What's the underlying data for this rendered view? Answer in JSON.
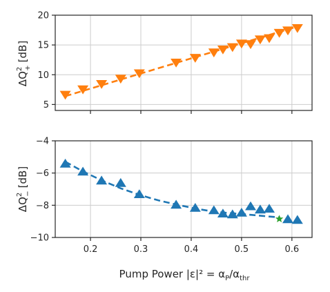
{
  "chart_data": [
    {
      "type": "line",
      "ylabel": "ΔQ",
      "ylabel_sup": "2",
      "ylabel_sub": "+",
      "ylabel_unit": "[dB]",
      "xlim": [
        0.13,
        0.64
      ],
      "ylim": [
        4,
        20
      ],
      "grid": true,
      "x_ticks": [
        0.2,
        0.3,
        0.4,
        0.5,
        0.6
      ],
      "y_ticks": [
        5,
        10,
        15,
        20
      ],
      "y_tick_labels": [
        "5",
        "10",
        "15",
        "20"
      ],
      "marker_color": "#ff7f0e",
      "line_color": "#ff7f0e",
      "series": [
        {
          "marker": "triangle-down",
          "x": [
            0.15,
            0.185,
            0.222,
            0.26,
            0.297,
            0.37,
            0.408,
            0.445,
            0.463,
            0.482,
            0.5,
            0.518,
            0.537,
            0.555,
            0.575,
            0.592,
            0.611
          ],
          "y": [
            6.6,
            7.5,
            8.4,
            9.3,
            10.2,
            12.0,
            12.8,
            13.7,
            14.2,
            14.6,
            15.2,
            15.1,
            15.9,
            16.1,
            17.0,
            17.4,
            17.8
          ]
        }
      ],
      "fit": {
        "style": "dashed",
        "x": [
          0.15,
          0.611
        ],
        "y": [
          6.4,
          18.1
        ]
      }
    },
    {
      "type": "line",
      "ylabel": "ΔQ",
      "ylabel_sup": "2",
      "ylabel_sub": "−",
      "ylabel_unit": "[dB]",
      "xlabel": "Pump Power |ε|² = α",
      "xlabel_sub1": "P",
      "xlabel_mid": "/α",
      "xlabel_sub2": "thr",
      "xlim": [
        0.13,
        0.64
      ],
      "ylim": [
        -10,
        -4
      ],
      "grid": true,
      "x_ticks": [
        0.2,
        0.3,
        0.4,
        0.5,
        0.6
      ],
      "x_tick_labels": [
        "0.2",
        "0.3",
        "0.4",
        "0.5",
        "0.6"
      ],
      "y_ticks": [
        -10,
        -8,
        -6,
        -4
      ],
      "y_tick_labels": [
        "−10",
        "−8",
        "−6",
        "−4"
      ],
      "marker_color": "#1f77b4",
      "line_color": "#1f77b4",
      "series": [
        {
          "marker": "triangle-up",
          "x": [
            0.15,
            0.185,
            0.222,
            0.26,
            0.297,
            0.37,
            0.408,
            0.445,
            0.463,
            0.482,
            0.5,
            0.518,
            0.537,
            0.555,
            0.592,
            0.611
          ],
          "y": [
            -5.4,
            -5.9,
            -6.45,
            -6.6,
            -7.3,
            -7.95,
            -8.15,
            -8.3,
            -8.5,
            -8.55,
            -8.45,
            -8.05,
            -8.25,
            -8.2,
            -8.85,
            -8.9
          ]
        }
      ],
      "fit": {
        "style": "dashed",
        "x": [
          0.15,
          0.185,
          0.222,
          0.26,
          0.297,
          0.335,
          0.37,
          0.408,
          0.445,
          0.482,
          0.52,
          0.555,
          0.575
        ],
        "y": [
          -5.3,
          -5.9,
          -6.45,
          -6.95,
          -7.35,
          -7.7,
          -7.95,
          -8.2,
          -8.4,
          -8.5,
          -8.6,
          -8.7,
          -8.75
        ]
      },
      "highlight": {
        "marker": "star",
        "color": "#2ca02c",
        "x": 0.575,
        "y": -8.85
      }
    }
  ]
}
